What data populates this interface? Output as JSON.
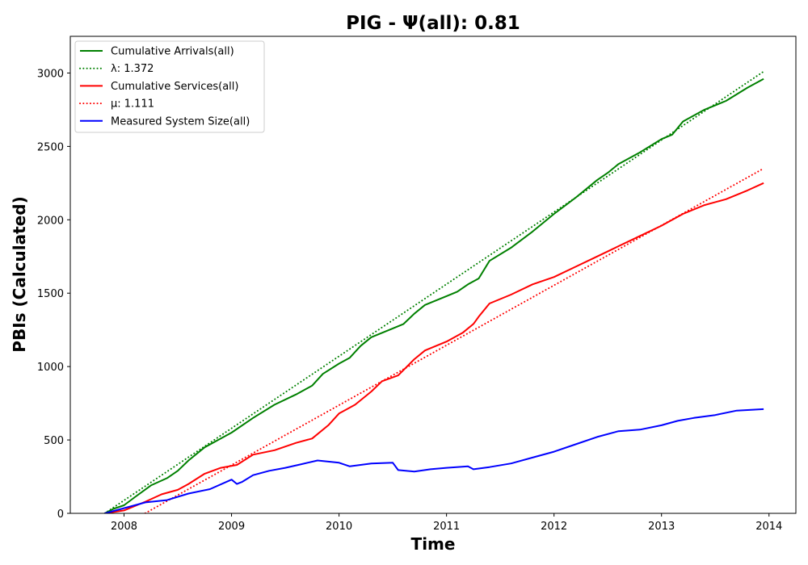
{
  "chart_data": {
    "type": "line",
    "title": "PIG -  Ψ(all): 0.81",
    "xlabel": "Time",
    "ylabel": "PBIs (Calculated)",
    "xlim": [
      2007.5,
      2014.25
    ],
    "ylim": [
      0,
      3250
    ],
    "xticks": [
      2008,
      2009,
      2010,
      2011,
      2012,
      2013,
      2014
    ],
    "yticks": [
      0,
      500,
      1000,
      1500,
      2000,
      2500,
      3000
    ],
    "legend_position": "top-left",
    "grid": false,
    "series": [
      {
        "name": "Cumulative Arrivals(all)",
        "legend": "Cumulative Arrivals(all)",
        "color": "#008000",
        "style": "solid",
        "x": [
          2007.82,
          2007.9,
          2008.0,
          2008.1,
          2008.25,
          2008.4,
          2008.5,
          2008.6,
          2008.75,
          2008.9,
          2009.0,
          2009.2,
          2009.4,
          2009.6,
          2009.75,
          2009.85,
          2010.0,
          2010.1,
          2010.2,
          2010.3,
          2010.5,
          2010.6,
          2010.7,
          2010.8,
          2011.0,
          2011.1,
          2011.2,
          2011.3,
          2011.4,
          2011.6,
          2011.8,
          2012.0,
          2012.2,
          2012.4,
          2012.5,
          2012.6,
          2012.8,
          2013.0,
          2013.1,
          2013.2,
          2013.4,
          2013.6,
          2013.8,
          2013.95
        ],
        "y": [
          0,
          30,
          55,
          110,
          190,
          240,
          290,
          360,
          450,
          510,
          550,
          650,
          740,
          810,
          870,
          950,
          1020,
          1060,
          1140,
          1200,
          1260,
          1290,
          1360,
          1420,
          1480,
          1510,
          1560,
          1600,
          1720,
          1810,
          1920,
          2040,
          2150,
          2270,
          2320,
          2380,
          2460,
          2550,
          2580,
          2670,
          2750,
          2810,
          2900,
          2960
        ]
      },
      {
        "name": "lambda-fit",
        "legend": "λ: 1.372",
        "color": "#008000",
        "style": "dotted",
        "x": [
          2007.82,
          2013.95
        ],
        "y": [
          0,
          3010
        ]
      },
      {
        "name": "Cumulative Services(all)",
        "legend": "Cumulative Services(all)",
        "color": "#ff0000",
        "style": "solid",
        "x": [
          2007.82,
          2008.0,
          2008.2,
          2008.35,
          2008.5,
          2008.6,
          2008.75,
          2008.9,
          2009.05,
          2009.2,
          2009.4,
          2009.6,
          2009.75,
          2009.9,
          2010.0,
          2010.15,
          2010.3,
          2010.4,
          2010.55,
          2010.7,
          2010.8,
          2011.0,
          2011.15,
          2011.25,
          2011.3,
          2011.4,
          2011.6,
          2011.8,
          2012.0,
          2012.2,
          2012.4,
          2012.6,
          2012.8,
          2013.0,
          2013.2,
          2013.4,
          2013.6,
          2013.8,
          2013.95
        ],
        "y": [
          0,
          20,
          80,
          130,
          160,
          200,
          270,
          310,
          330,
          400,
          430,
          480,
          510,
          600,
          680,
          740,
          830,
          900,
          940,
          1050,
          1110,
          1170,
          1230,
          1290,
          1340,
          1430,
          1490,
          1560,
          1610,
          1680,
          1750,
          1820,
          1890,
          1960,
          2040,
          2100,
          2140,
          2200,
          2250
        ]
      },
      {
        "name": "mu-fit",
        "legend": "μ: 1.111",
        "color": "#ff0000",
        "style": "dotted",
        "x": [
          2008.0,
          2013.95
        ],
        "y": [
          -80,
          2350
        ]
      },
      {
        "name": "Measured System Size(all)",
        "legend": "Measured System Size(all)",
        "color": "#0000ff",
        "style": "solid",
        "x": [
          2007.82,
          2008.0,
          2008.2,
          2008.4,
          2008.6,
          2008.8,
          2009.0,
          2009.05,
          2009.1,
          2009.2,
          2009.35,
          2009.5,
          2009.65,
          2009.8,
          2010.0,
          2010.1,
          2010.3,
          2010.5,
          2010.55,
          2010.7,
          2010.85,
          2011.0,
          2011.2,
          2011.25,
          2011.4,
          2011.6,
          2011.8,
          2012.0,
          2012.2,
          2012.4,
          2012.6,
          2012.8,
          2013.0,
          2013.15,
          2013.3,
          2013.5,
          2013.7,
          2013.95
        ],
        "y": [
          0,
          35,
          75,
          90,
          135,
          165,
          230,
          200,
          215,
          260,
          290,
          310,
          335,
          360,
          345,
          320,
          340,
          345,
          295,
          285,
          300,
          310,
          320,
          300,
          315,
          340,
          380,
          420,
          470,
          520,
          560,
          570,
          600,
          630,
          650,
          670,
          700,
          710
        ]
      }
    ]
  }
}
